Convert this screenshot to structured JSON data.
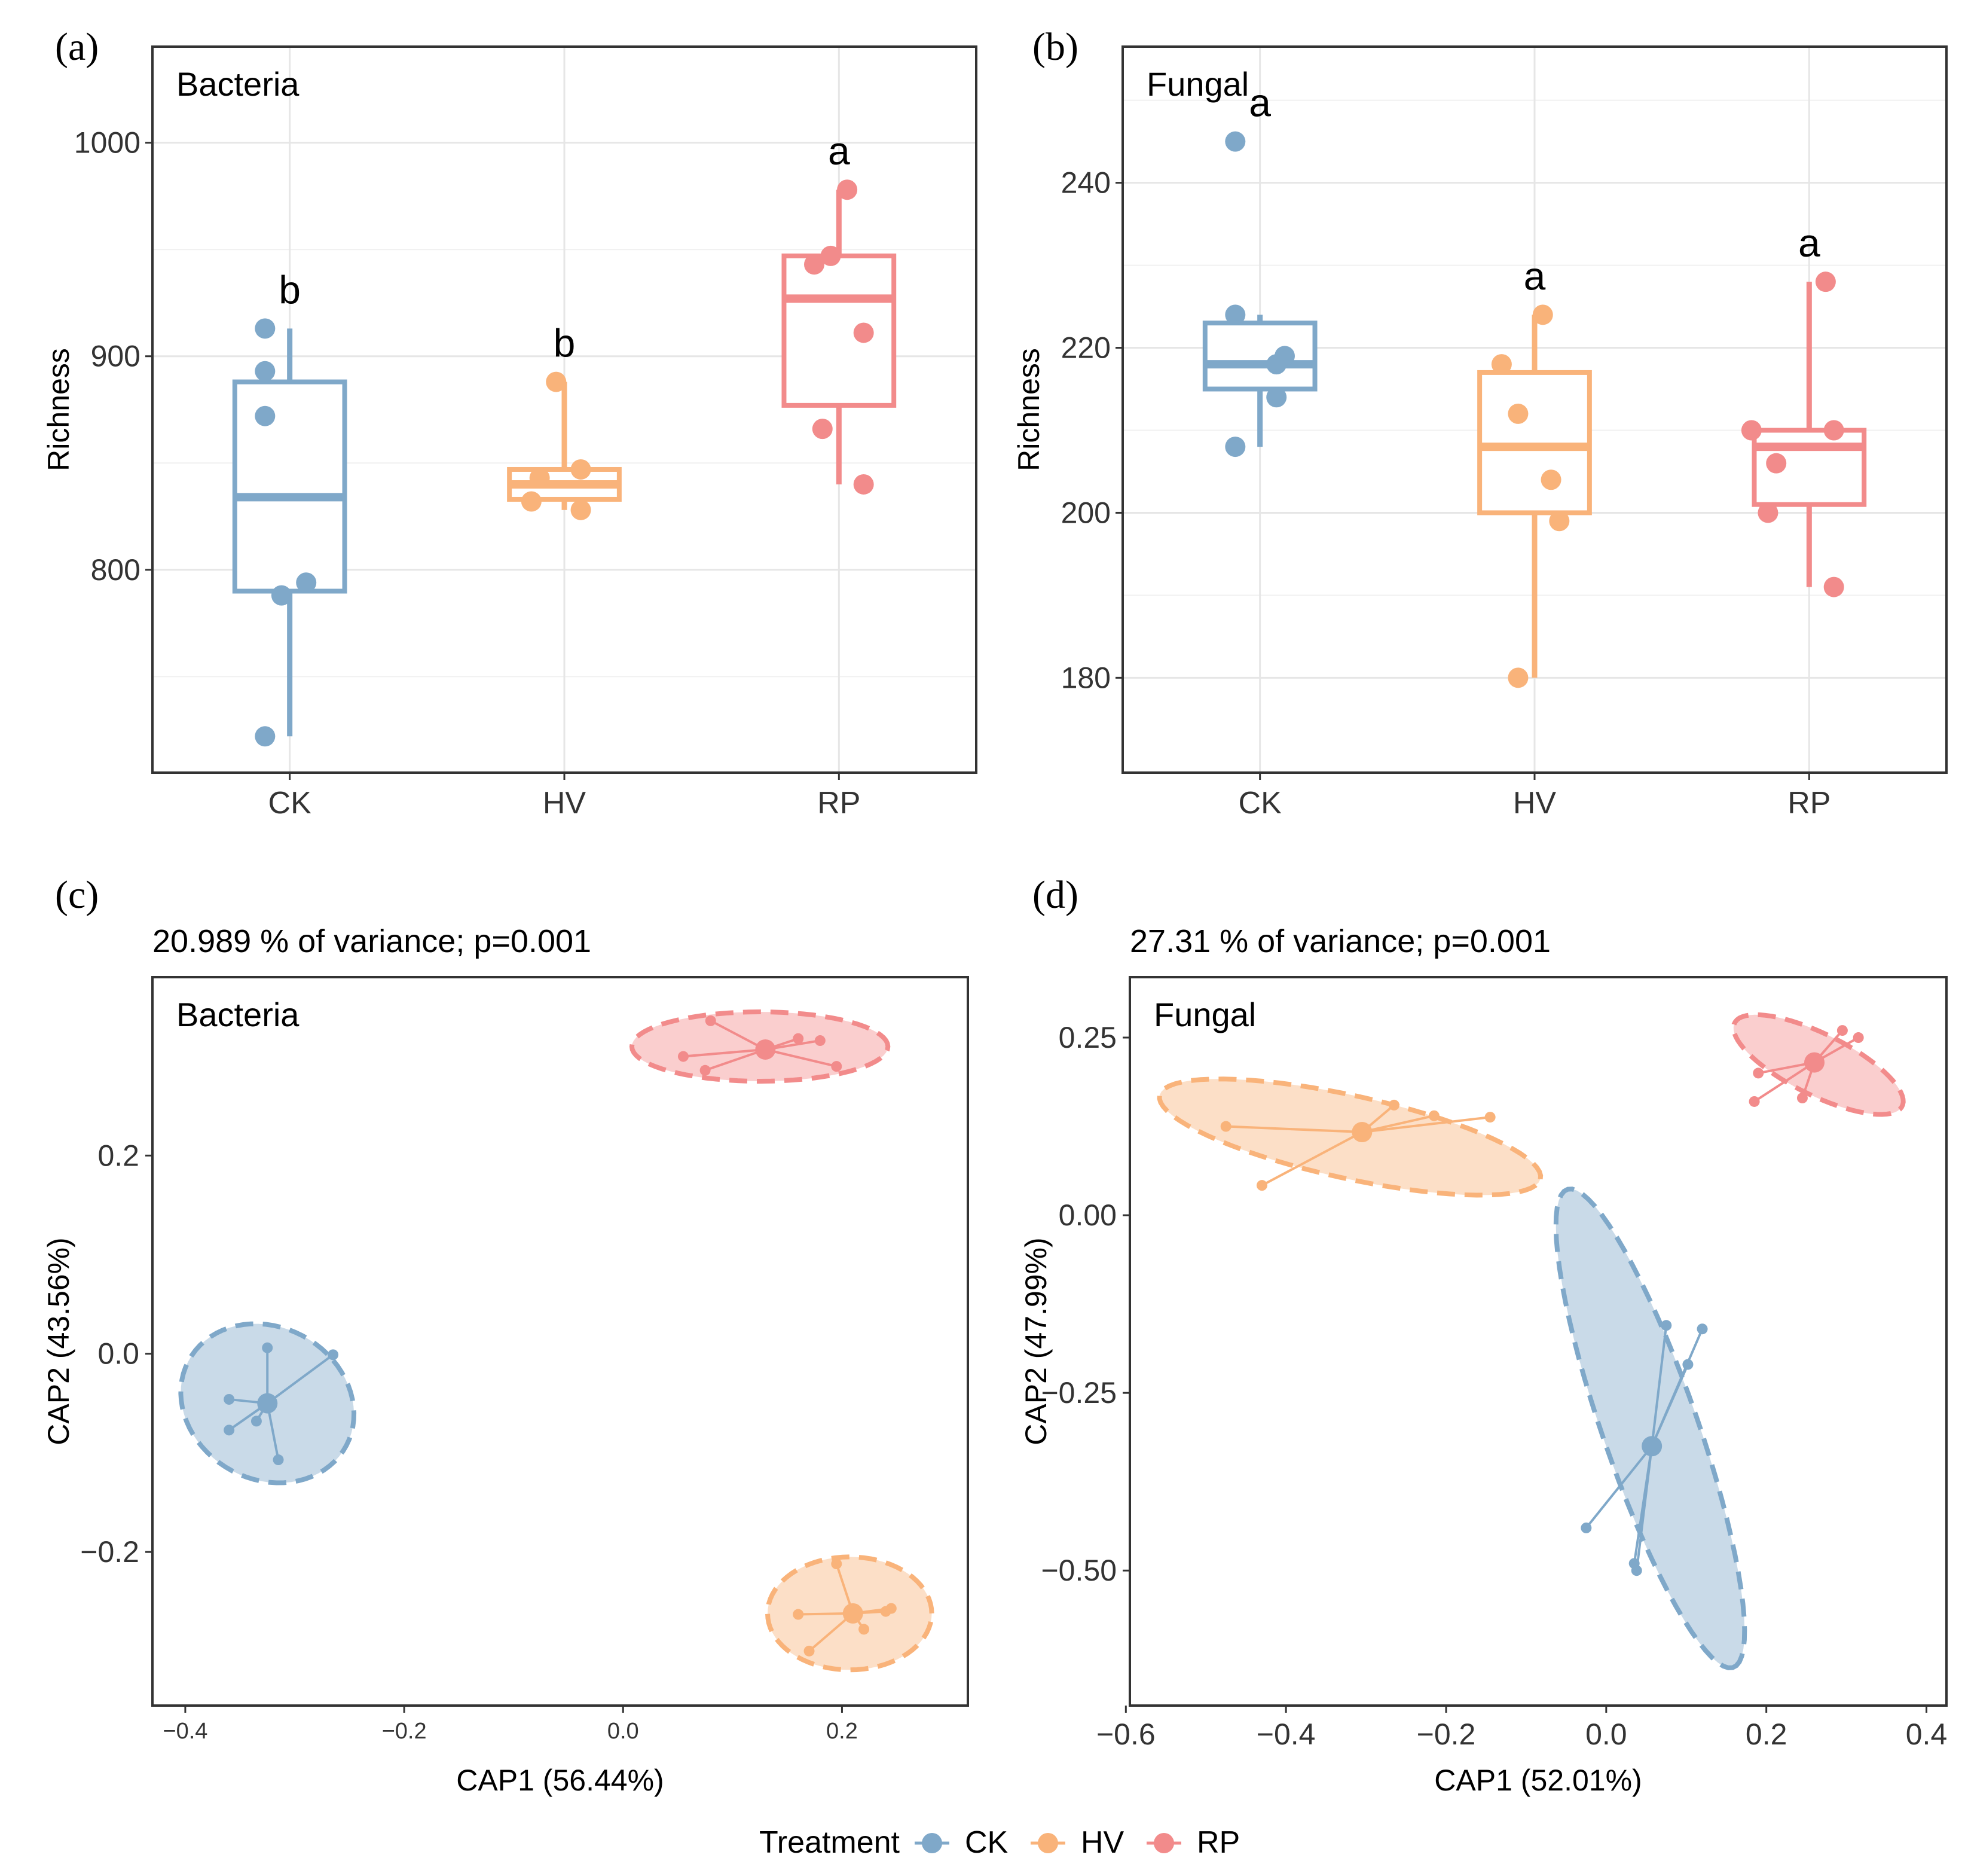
{
  "colors": {
    "CK": "#7fa8c9",
    "HV": "#f9b37a",
    "RP": "#f28b8b",
    "grid": "#e6e6e6",
    "frame": "#333333"
  },
  "legend": {
    "title": "Treatment",
    "items": [
      "CK",
      "HV",
      "RP"
    ]
  },
  "chart_data": [
    {
      "id": "a",
      "panel_label": "(a)",
      "type": "box",
      "title": "Bacteria",
      "xlabel": "",
      "ylabel": "Richness",
      "categories": [
        "CK",
        "HV",
        "RP"
      ],
      "ylim": [
        705,
        1045
      ],
      "yticks": [
        800,
        900,
        1000
      ],
      "yminor": [
        750,
        850,
        950
      ],
      "boxes": [
        {
          "group": "CK",
          "q1": 790,
          "median": 834,
          "q3": 888,
          "whisker_low": 722,
          "whisker_high": 913,
          "letter": "b",
          "letter_y": 913,
          "points": [
            [
              -0.03,
              913
            ],
            [
              -0.03,
              893
            ],
            [
              -0.03,
              872
            ],
            [
              0.02,
              794
            ],
            [
              -0.01,
              788
            ],
            [
              -0.03,
              722
            ]
          ]
        },
        {
          "group": "HV",
          "q1": 833,
          "median": 840,
          "q3": 847,
          "whisker_low": 828,
          "whisker_high": 888,
          "letter": "b",
          "letter_y": 888,
          "points": [
            [
              -0.01,
              888
            ],
            [
              0.02,
              847
            ],
            [
              -0.03,
              843
            ],
            [
              -0.04,
              832
            ],
            [
              0.02,
              828
            ]
          ]
        },
        {
          "group": "RP",
          "q1": 877,
          "median": 927,
          "q3": 947,
          "whisker_low": 840,
          "whisker_high": 978,
          "letter": "a",
          "letter_y": 978,
          "points": [
            [
              0.01,
              978
            ],
            [
              -0.01,
              947
            ],
            [
              -0.03,
              943
            ],
            [
              0.03,
              911
            ],
            [
              -0.02,
              866
            ],
            [
              0.03,
              840
            ]
          ]
        }
      ]
    },
    {
      "id": "b",
      "panel_label": "(b)",
      "type": "box",
      "title": "Fungal",
      "xlabel": "",
      "ylabel": "Richness",
      "categories": [
        "CK",
        "HV",
        "RP"
      ],
      "ylim": [
        168.5,
        256.5
      ],
      "yticks": [
        180,
        200,
        220,
        240
      ],
      "yminor": [
        190,
        210,
        230,
        250
      ],
      "boxes": [
        {
          "group": "CK",
          "q1": 215,
          "median": 218,
          "q3": 223,
          "whisker_low": 208,
          "whisker_high": 224,
          "letter": "a",
          "letter_y": 245,
          "points": [
            [
              -0.03,
              245
            ],
            [
              -0.03,
              224
            ],
            [
              0.03,
              219
            ],
            [
              0.02,
              218
            ],
            [
              0.02,
              214
            ],
            [
              -0.03,
              208
            ]
          ]
        },
        {
          "group": "HV",
          "q1": 200,
          "median": 208,
          "q3": 217,
          "whisker_low": 180,
          "whisker_high": 224,
          "letter": "a",
          "letter_y": 224,
          "points": [
            [
              0.01,
              224
            ],
            [
              -0.04,
              218
            ],
            [
              -0.02,
              212
            ],
            [
              0.02,
              204
            ],
            [
              0.03,
              199
            ],
            [
              -0.02,
              180
            ]
          ]
        },
        {
          "group": "RP",
          "q1": 201,
          "median": 208,
          "q3": 210,
          "whisker_low": 191,
          "whisker_high": 228,
          "letter": "a",
          "letter_y": 228,
          "points": [
            [
              0.02,
              228
            ],
            [
              -0.07,
              210
            ],
            [
              0.03,
              210
            ],
            [
              -0.04,
              206
            ],
            [
              -0.05,
              200
            ],
            [
              0.03,
              191
            ]
          ]
        }
      ]
    },
    {
      "id": "c",
      "panel_label": "(c)",
      "type": "scatter",
      "title": "Bacteria",
      "subtitle": "20.989 % of variance; p=0.001",
      "xlabel": "CAP1 (56.44%)",
      "ylabel": "CAP2 (43.56%)",
      "xlim": [
        -0.43,
        0.315
      ],
      "ylim": [
        -0.355,
        0.38
      ],
      "xticks": [
        -0.4,
        -0.2,
        0.0,
        0.2
      ],
      "xtick_labels": [
        "−0.4",
        "−0.2",
        "0.0",
        "0.2"
      ],
      "yticks": [
        -0.2,
        0.0,
        0.2
      ],
      "ytick_labels": [
        "−0.2",
        "0.0",
        "0.2"
      ],
      "groups": [
        {
          "name": "CK",
          "centroid": [
            -0.325,
            -0.05
          ],
          "points": [
            [
              -0.325,
              0.006
            ],
            [
              -0.265,
              -0.001
            ],
            [
              -0.36,
              -0.046
            ],
            [
              -0.335,
              -0.068
            ],
            [
              -0.36,
              -0.077
            ],
            [
              -0.315,
              -0.107
            ]
          ],
          "ellipse": {
            "cx": -0.325,
            "cy": -0.05,
            "rx": 0.074,
            "ry": 0.085,
            "angle": 42
          }
        },
        {
          "name": "HV",
          "centroid": [
            0.21,
            -0.262
          ],
          "points": [
            [
              0.195,
              -0.212
            ],
            [
              0.16,
              -0.263
            ],
            [
              0.245,
              -0.257
            ],
            [
              0.24,
              -0.26
            ],
            [
              0.22,
              -0.278
            ],
            [
              0.17,
              -0.3
            ]
          ],
          "ellipse": {
            "cx": 0.207,
            "cy": -0.262,
            "rx": 0.075,
            "ry": 0.057,
            "angle": 0
          }
        },
        {
          "name": "RP",
          "centroid": [
            0.13,
            0.307
          ],
          "points": [
            [
              0.08,
              0.336
            ],
            [
              0.16,
              0.318
            ],
            [
              0.18,
              0.316
            ],
            [
              0.055,
              0.3
            ],
            [
              0.195,
              0.29
            ],
            [
              0.075,
              0.286
            ]
          ],
          "ellipse": {
            "cx": 0.125,
            "cy": 0.31,
            "rx": 0.117,
            "ry": 0.035,
            "angle": 0
          }
        }
      ]
    },
    {
      "id": "d",
      "panel_label": "(d)",
      "type": "scatter",
      "title": "Fungal",
      "subtitle": "27.31 % of variance; p=0.001",
      "xlabel": "CAP1 (52.01%)",
      "ylabel": "CAP2 (47.99%)",
      "xlim": [
        -0.595,
        0.425
      ],
      "ylim": [
        -0.69,
        0.335
      ],
      "xticks": [
        -0.6,
        -0.4,
        -0.2,
        0.0,
        0.2,
        0.4
      ],
      "xtick_labels": [
        "−0.6",
        "−0.4",
        "−0.2",
        "0.0",
        "0.2",
        "0.4"
      ],
      "yticks": [
        -0.5,
        -0.25,
        0.0,
        0.25
      ],
      "ytick_labels": [
        "−0.50",
        "−0.25",
        "0.00",
        "0.25"
      ],
      "groups": [
        {
          "name": "CK",
          "centroid": [
            0.057,
            -0.325
          ],
          "points": [
            [
              0.075,
              -0.155
            ],
            [
              0.12,
              -0.16
            ],
            [
              0.102,
              -0.21
            ],
            [
              -0.025,
              -0.44
            ],
            [
              0.035,
              -0.49
            ],
            [
              0.038,
              -0.5
            ]
          ],
          "ellipse": {
            "cx": 0.055,
            "cy": -0.3,
            "rx": 0.352,
            "ry": 0.06,
            "angle": -73
          }
        },
        {
          "name": "HV",
          "centroid": [
            -0.305,
            0.117
          ],
          "points": [
            [
              -0.265,
              0.155
            ],
            [
              -0.215,
              0.14
            ],
            [
              -0.145,
              0.138
            ],
            [
              -0.475,
              0.125
            ],
            [
              -0.43,
              0.042
            ]
          ],
          "ellipse": {
            "cx": -0.32,
            "cy": 0.11,
            "rx": 0.245,
            "ry": 0.058,
            "angle": -14
          }
        },
        {
          "name": "RP",
          "centroid": [
            0.26,
            0.215
          ],
          "points": [
            [
              0.295,
              0.26
            ],
            [
              0.315,
              0.25
            ],
            [
              0.19,
              0.2
            ],
            [
              0.245,
              0.165
            ],
            [
              0.185,
              0.16
            ]
          ],
          "ellipse": {
            "cx": 0.265,
            "cy": 0.212,
            "rx": 0.12,
            "ry": 0.042,
            "angle": -30
          }
        }
      ]
    }
  ]
}
